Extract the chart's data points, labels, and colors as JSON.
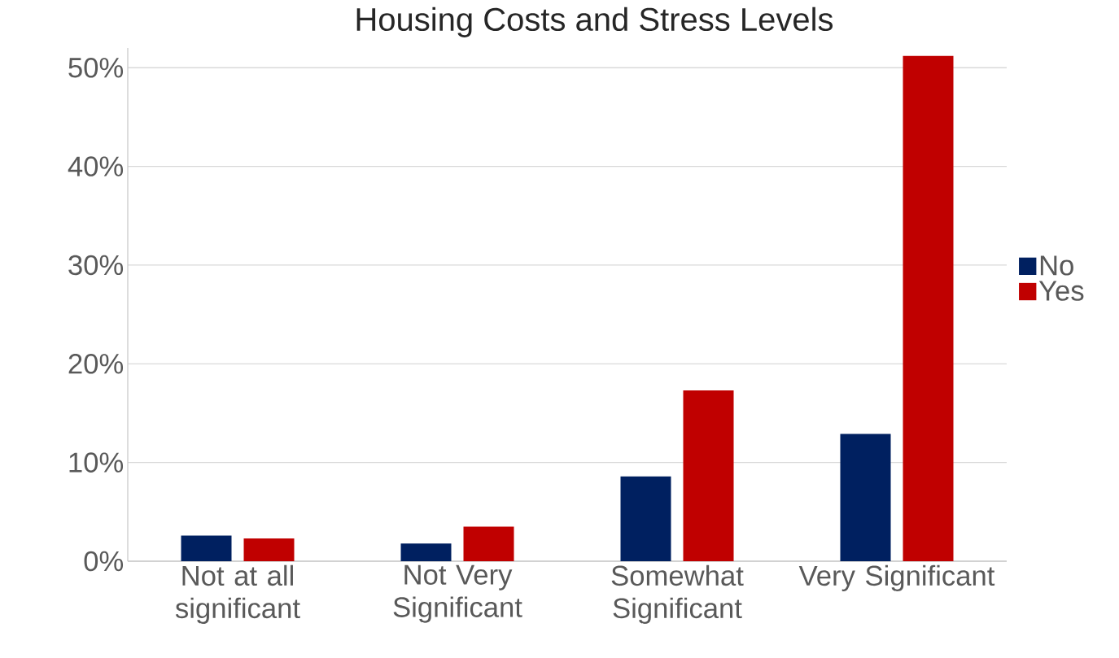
{
  "chart_data": {
    "type": "bar",
    "title": "Housing Costs and Stress Levels",
    "categories": [
      "Not at all significant",
      "Not Very Significant",
      "Somewhat Significant",
      "Very Significant"
    ],
    "series": [
      {
        "name": "No",
        "color": "#002060",
        "values": [
          2.6,
          1.8,
          8.6,
          12.9
        ]
      },
      {
        "name": "Yes",
        "color": "#c00000",
        "values": [
          2.3,
          3.5,
          17.3,
          51.2
        ]
      }
    ],
    "ylim": [
      0,
      52
    ],
    "yticks": [
      {
        "value": 0,
        "label": "0%"
      },
      {
        "value": 10,
        "label": "10%"
      },
      {
        "value": 20,
        "label": "20%"
      },
      {
        "value": 30,
        "label": "30%"
      },
      {
        "value": 40,
        "label": "40%"
      },
      {
        "value": 50,
        "label": "50%"
      }
    ],
    "grid": "y",
    "legend": "right"
  }
}
